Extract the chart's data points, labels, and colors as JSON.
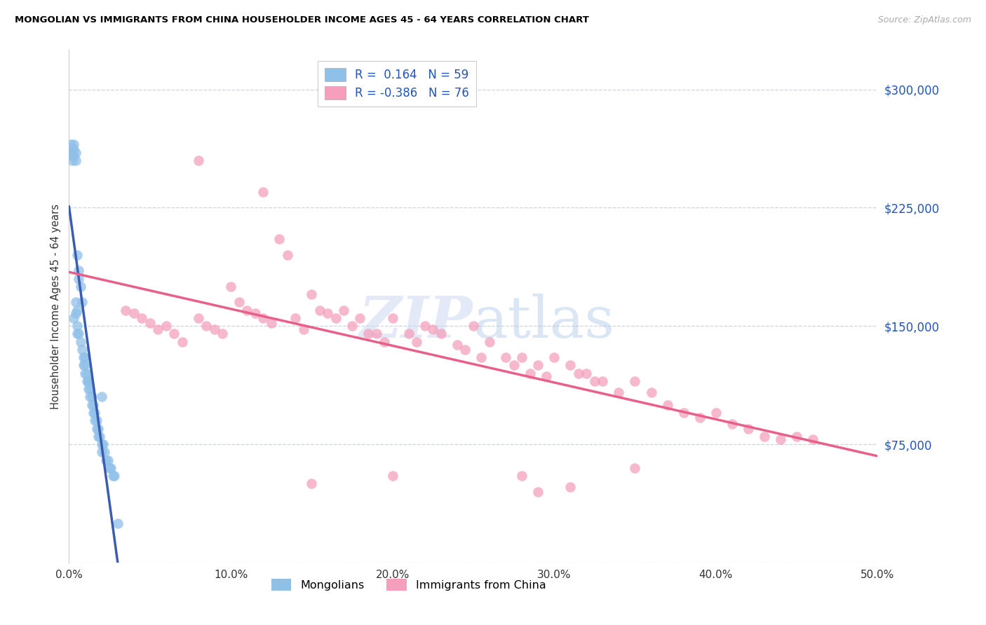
{
  "title": "MONGOLIAN VS IMMIGRANTS FROM CHINA HOUSEHOLDER INCOME AGES 45 - 64 YEARS CORRELATION CHART",
  "source": "Source: ZipAtlas.com",
  "ylabel": "Householder Income Ages 45 - 64 years",
  "xlim": [
    0.0,
    0.5
  ],
  "ylim": [
    0,
    325000
  ],
  "yticks": [
    0,
    75000,
    150000,
    225000,
    300000
  ],
  "xticks": [
    0.0,
    0.1,
    0.2,
    0.3,
    0.4,
    0.5
  ],
  "R_mongolian": 0.164,
  "N_mongolian": 59,
  "R_china": -0.386,
  "N_china": 76,
  "color_mongolian": "#8fc0e8",
  "color_china": "#f4a0bc",
  "trendline_mongolian": "#3a5db0",
  "trendline_china": "#e8608a",
  "trendline_dashed_color": "#a8c8e8",
  "watermark_color": "#ccd8f0",
  "grid_color": "#c8ced8",
  "mongolian_scatter_x": [
    0.003,
    0.004,
    0.004,
    0.005,
    0.005,
    0.005,
    0.006,
    0.007,
    0.008,
    0.009,
    0.009,
    0.01,
    0.01,
    0.011,
    0.011,
    0.012,
    0.012,
    0.013,
    0.013,
    0.014,
    0.014,
    0.015,
    0.015,
    0.016,
    0.016,
    0.017,
    0.017,
    0.018,
    0.018,
    0.019,
    0.02,
    0.02,
    0.021,
    0.022,
    0.023,
    0.024,
    0.025,
    0.026,
    0.027,
    0.028,
    0.001,
    0.001,
    0.002,
    0.002,
    0.002,
    0.003,
    0.003,
    0.003,
    0.004,
    0.004,
    0.005,
    0.006,
    0.006,
    0.007,
    0.008,
    0.01,
    0.012,
    0.02,
    0.03
  ],
  "mongolian_scatter_y": [
    155000,
    165000,
    158000,
    160000,
    145000,
    150000,
    145000,
    140000,
    135000,
    130000,
    125000,
    120000,
    125000,
    120000,
    115000,
    110000,
    115000,
    110000,
    105000,
    105000,
    100000,
    95000,
    100000,
    95000,
    90000,
    90000,
    85000,
    85000,
    80000,
    80000,
    75000,
    70000,
    75000,
    70000,
    65000,
    65000,
    60000,
    60000,
    55000,
    55000,
    265000,
    260000,
    260000,
    258000,
    255000,
    265000,
    262000,
    258000,
    260000,
    255000,
    195000,
    185000,
    180000,
    175000,
    165000,
    130000,
    115000,
    105000,
    25000
  ],
  "china_scatter_x": [
    0.035,
    0.04,
    0.045,
    0.05,
    0.055,
    0.06,
    0.065,
    0.07,
    0.08,
    0.085,
    0.09,
    0.095,
    0.1,
    0.105,
    0.11,
    0.115,
    0.12,
    0.125,
    0.13,
    0.135,
    0.14,
    0.145,
    0.15,
    0.155,
    0.16,
    0.165,
    0.17,
    0.175,
    0.18,
    0.185,
    0.19,
    0.195,
    0.2,
    0.21,
    0.215,
    0.22,
    0.225,
    0.23,
    0.24,
    0.245,
    0.25,
    0.255,
    0.26,
    0.27,
    0.275,
    0.28,
    0.285,
    0.29,
    0.295,
    0.3,
    0.31,
    0.315,
    0.32,
    0.325,
    0.33,
    0.34,
    0.35,
    0.36,
    0.37,
    0.38,
    0.39,
    0.4,
    0.41,
    0.42,
    0.43,
    0.44,
    0.45,
    0.46,
    0.12,
    0.08,
    0.2,
    0.15,
    0.28,
    0.35,
    0.29,
    0.31
  ],
  "china_scatter_y": [
    160000,
    158000,
    155000,
    152000,
    148000,
    150000,
    145000,
    140000,
    155000,
    150000,
    148000,
    145000,
    175000,
    165000,
    160000,
    158000,
    155000,
    152000,
    205000,
    195000,
    155000,
    148000,
    170000,
    160000,
    158000,
    155000,
    160000,
    150000,
    155000,
    145000,
    145000,
    140000,
    155000,
    145000,
    140000,
    150000,
    148000,
    145000,
    138000,
    135000,
    150000,
    130000,
    140000,
    130000,
    125000,
    130000,
    120000,
    125000,
    118000,
    130000,
    125000,
    120000,
    120000,
    115000,
    115000,
    108000,
    115000,
    108000,
    100000,
    95000,
    92000,
    95000,
    88000,
    85000,
    80000,
    78000,
    80000,
    78000,
    235000,
    255000,
    55000,
    50000,
    55000,
    60000,
    45000,
    48000
  ]
}
